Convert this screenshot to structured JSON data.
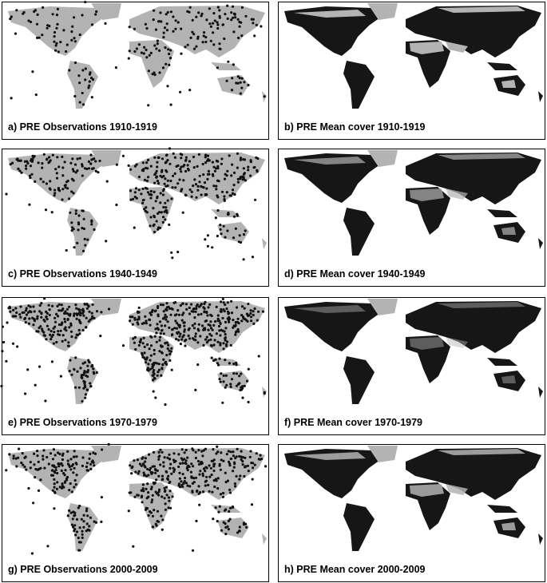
{
  "panels": [
    {
      "caption": "a) PRE Observations 1910-1919"
    },
    {
      "caption": "b) PRE Mean cover 1910-1919"
    },
    {
      "caption": "c) PRE Observations 1940-1949"
    },
    {
      "caption": "d) PRE Mean cover 1940-1949"
    },
    {
      "caption": "e) PRE Observations 1970-1979"
    },
    {
      "caption": "f) PRE Mean cover 1970-1979"
    },
    {
      "caption": "g) PRE Observations 2000-2009"
    },
    {
      "caption": "h) PRE Mean cover 2000-2009"
    }
  ]
}
